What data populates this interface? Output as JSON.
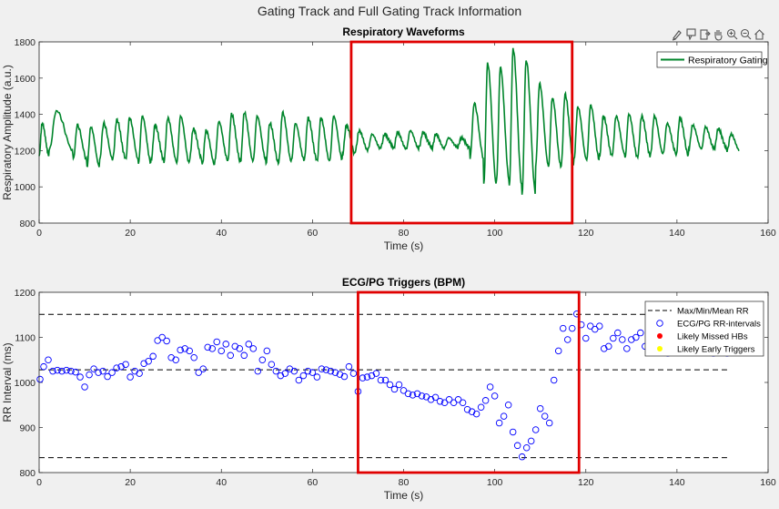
{
  "figure": {
    "title": "Gating Track and Full Gating Track Information"
  },
  "toolbar": {
    "icons": [
      "brush-icon",
      "data-tip-icon",
      "export-icon",
      "pan-icon",
      "zoom-in-icon",
      "zoom-out-icon",
      "home-icon"
    ]
  },
  "chart_data": [
    {
      "type": "line",
      "title": "Respiratory Waveforms",
      "xlabel": "Time (s)",
      "ylabel": "Respiratory Amplitude (a.u.)",
      "xlim": [
        0,
        160
      ],
      "ylim": [
        800,
        1800
      ],
      "xticks": [
        0,
        20,
        40,
        60,
        80,
        100,
        120,
        140,
        160
      ],
      "yticks": [
        800,
        1000,
        1200,
        1400,
        1600,
        1800
      ],
      "grid": false,
      "legend": "top-right",
      "series": [
        {
          "name": "Respiratory Gating",
          "color": "#00852b",
          "breathing_cycles": [
            {
              "t": 0.0,
              "min": 1170,
              "max": 1350
            },
            {
              "t": 2.2,
              "min": 1200,
              "max": 1420
            },
            {
              "t": 7.5,
              "min": 1150,
              "max": 1340
            },
            {
              "t": 10.5,
              "min": 1110,
              "max": 1330
            },
            {
              "t": 13.3,
              "min": 1150,
              "max": 1350
            },
            {
              "t": 16.2,
              "min": 1160,
              "max": 1370
            },
            {
              "t": 19.0,
              "min": 1150,
              "max": 1380
            },
            {
              "t": 21.8,
              "min": 1130,
              "max": 1390
            },
            {
              "t": 24.6,
              "min": 1150,
              "max": 1340
            },
            {
              "t": 27.4,
              "min": 1140,
              "max": 1380
            },
            {
              "t": 30.2,
              "min": 1130,
              "max": 1390
            },
            {
              "t": 33.0,
              "min": 1150,
              "max": 1320
            },
            {
              "t": 35.8,
              "min": 1120,
              "max": 1310
            },
            {
              "t": 38.6,
              "min": 1150,
              "max": 1360
            },
            {
              "t": 41.4,
              "min": 1140,
              "max": 1400
            },
            {
              "t": 44.2,
              "min": 1140,
              "max": 1410
            },
            {
              "t": 47.0,
              "min": 1150,
              "max": 1390
            },
            {
              "t": 49.8,
              "min": 1130,
              "max": 1350
            },
            {
              "t": 52.6,
              "min": 1140,
              "max": 1410
            },
            {
              "t": 55.4,
              "min": 1150,
              "max": 1350
            },
            {
              "t": 58.2,
              "min": 1150,
              "max": 1380
            },
            {
              "t": 61.0,
              "min": 1140,
              "max": 1380
            },
            {
              "t": 63.8,
              "min": 1150,
              "max": 1390
            },
            {
              "t": 66.6,
              "min": 1180,
              "max": 1340
            },
            {
              "t": 69.4,
              "min": 1200,
              "max": 1310
            },
            {
              "t": 72.2,
              "min": 1210,
              "max": 1290
            },
            {
              "t": 75.0,
              "min": 1220,
              "max": 1290
            },
            {
              "t": 77.8,
              "min": 1210,
              "max": 1300
            },
            {
              "t": 80.6,
              "min": 1210,
              "max": 1310
            },
            {
              "t": 83.4,
              "min": 1220,
              "max": 1300
            },
            {
              "t": 86.2,
              "min": 1210,
              "max": 1290
            },
            {
              "t": 89.0,
              "min": 1220,
              "max": 1270
            },
            {
              "t": 91.8,
              "min": 1215,
              "max": 1270
            },
            {
              "t": 94.6,
              "min": 1160,
              "max": 1460
            },
            {
              "t": 97.6,
              "min": 1010,
              "max": 1680
            },
            {
              "t": 100.4,
              "min": 1040,
              "max": 1660
            },
            {
              "t": 103.2,
              "min": 1000,
              "max": 1760
            },
            {
              "t": 106.0,
              "min": 960,
              "max": 1700
            },
            {
              "t": 109.0,
              "min": 1120,
              "max": 1570
            },
            {
              "t": 111.8,
              "min": 1110,
              "max": 1490
            },
            {
              "t": 114.6,
              "min": 1120,
              "max": 1510
            },
            {
              "t": 117.4,
              "min": 1150,
              "max": 1440
            },
            {
              "t": 120.2,
              "min": 1150,
              "max": 1450
            },
            {
              "t": 123.0,
              "min": 1170,
              "max": 1390
            },
            {
              "t": 125.8,
              "min": 1180,
              "max": 1390
            },
            {
              "t": 128.6,
              "min": 1160,
              "max": 1400
            },
            {
              "t": 131.4,
              "min": 1170,
              "max": 1390
            },
            {
              "t": 134.2,
              "min": 1180,
              "max": 1390
            },
            {
              "t": 137.0,
              "min": 1190,
              "max": 1350
            },
            {
              "t": 139.8,
              "min": 1170,
              "max": 1380
            },
            {
              "t": 142.6,
              "min": 1210,
              "max": 1340
            },
            {
              "t": 145.4,
              "min": 1210,
              "max": 1330
            },
            {
              "t": 148.2,
              "min": 1210,
              "max": 1320
            },
            {
              "t": 151.0,
              "min": 1200,
              "max": 1290
            }
          ]
        }
      ],
      "highlight": {
        "color": "#e00000",
        "x": [
          68.5,
          117.0
        ],
        "y": [
          800,
          1800
        ]
      }
    },
    {
      "type": "scatter",
      "title": "ECG/PG Triggers (BPM)",
      "xlabel": "Time (s)",
      "ylabel": "RR Interval (ms)",
      "xlim": [
        0,
        160
      ],
      "ylim": [
        800,
        1200
      ],
      "xticks": [
        0,
        20,
        40,
        60,
        80,
        100,
        120,
        140,
        160
      ],
      "yticks": [
        800,
        900,
        1000,
        1100,
        1200
      ],
      "grid": false,
      "legend": "top-right",
      "legend_entries": [
        {
          "name": "Max/Min/Mean RR",
          "kind": "dashed-line",
          "color": "#000000"
        },
        {
          "name": "ECG/PG RR-intervals",
          "kind": "open-circle",
          "color": "#0000ff"
        },
        {
          "name": "Likely Missed HBs",
          "kind": "filled-dot",
          "color": "#ff0000"
        },
        {
          "name": "Likely Early Triggers",
          "kind": "filled-dot",
          "color": "#ffff00"
        }
      ],
      "reference_lines": [
        {
          "label": "max",
          "y": 1151,
          "x": [
            0,
            151
          ]
        },
        {
          "label": "mean",
          "y": 1028,
          "x": [
            0,
            151
          ]
        },
        {
          "label": "min",
          "y": 833,
          "x": [
            0,
            151
          ]
        }
      ],
      "series": [
        {
          "name": "ECG/PG RR-intervals",
          "color": "#0000ff",
          "points": [
            [
              0.2,
              1007
            ],
            [
              1.0,
              1035
            ],
            [
              2.0,
              1050
            ],
            [
              3.0,
              1025
            ],
            [
              4.0,
              1027
            ],
            [
              5.0,
              1025
            ],
            [
              6.0,
              1027
            ],
            [
              7.0,
              1025
            ],
            [
              8.0,
              1023
            ],
            [
              9.0,
              1012
            ],
            [
              10.0,
              990
            ],
            [
              11.0,
              1017
            ],
            [
              12.0,
              1030
            ],
            [
              13.0,
              1022
            ],
            [
              14.0,
              1025
            ],
            [
              15.0,
              1013
            ],
            [
              16.0,
              1022
            ],
            [
              17.0,
              1032
            ],
            [
              18.0,
              1035
            ],
            [
              19.0,
              1040
            ],
            [
              20.0,
              1012
            ],
            [
              21.0,
              1025
            ],
            [
              22.0,
              1020
            ],
            [
              23.0,
              1042
            ],
            [
              24.0,
              1047
            ],
            [
              25.0,
              1058
            ],
            [
              26.0,
              1093
            ],
            [
              27.0,
              1100
            ],
            [
              28.0,
              1092
            ],
            [
              29.0,
              1055
            ],
            [
              30.0,
              1050
            ],
            [
              31.0,
              1072
            ],
            [
              32.0,
              1075
            ],
            [
              33.0,
              1070
            ],
            [
              34.0,
              1055
            ],
            [
              35.0,
              1022
            ],
            [
              36.0,
              1030
            ],
            [
              37.0,
              1078
            ],
            [
              38.0,
              1075
            ],
            [
              39.0,
              1090
            ],
            [
              40.0,
              1070
            ],
            [
              41.0,
              1085
            ],
            [
              42.0,
              1060
            ],
            [
              43.0,
              1080
            ],
            [
              44.0,
              1075
            ],
            [
              45.0,
              1060
            ],
            [
              46.0,
              1085
            ],
            [
              47.0,
              1075
            ],
            [
              48.0,
              1025
            ],
            [
              49.0,
              1050
            ],
            [
              50.0,
              1070
            ],
            [
              51.0,
              1040
            ],
            [
              52.0,
              1025
            ],
            [
              53.0,
              1015
            ],
            [
              54.0,
              1020
            ],
            [
              55.0,
              1030
            ],
            [
              56.0,
              1025
            ],
            [
              57.0,
              1005
            ],
            [
              58.0,
              1015
            ],
            [
              59.0,
              1025
            ],
            [
              60.0,
              1022
            ],
            [
              61.0,
              1012
            ],
            [
              62.0,
              1030
            ],
            [
              63.0,
              1028
            ],
            [
              64.0,
              1025
            ],
            [
              65.0,
              1022
            ],
            [
              66.0,
              1018
            ],
            [
              67.0,
              1013
            ],
            [
              68.0,
              1035
            ],
            [
              69.0,
              1020
            ],
            [
              70.0,
              980
            ],
            [
              71.0,
              1010
            ],
            [
              72.0,
              1012
            ],
            [
              73.0,
              1015
            ],
            [
              74.0,
              1020
            ],
            [
              75.0,
              1005
            ],
            [
              76.0,
              1005
            ],
            [
              77.0,
              995
            ],
            [
              78.0,
              985
            ],
            [
              79.0,
              995
            ],
            [
              80.0,
              982
            ],
            [
              81.0,
              975
            ],
            [
              82.0,
              972
            ],
            [
              83.0,
              975
            ],
            [
              84.0,
              970
            ],
            [
              85.0,
              968
            ],
            [
              86.0,
              962
            ],
            [
              87.0,
              967
            ],
            [
              88.0,
              958
            ],
            [
              89.0,
              955
            ],
            [
              90.0,
              962
            ],
            [
              91.0,
              955
            ],
            [
              92.0,
              962
            ],
            [
              93.0,
              955
            ],
            [
              94.0,
              940
            ],
            [
              95.0,
              935
            ],
            [
              96.0,
              930
            ],
            [
              97.0,
              945
            ],
            [
              98.0,
              960
            ],
            [
              99.0,
              990
            ],
            [
              100.0,
              970
            ],
            [
              101.0,
              910
            ],
            [
              102.0,
              925
            ],
            [
              103.0,
              950
            ],
            [
              104.0,
              890
            ],
            [
              105.0,
              860
            ],
            [
              106.0,
              835
            ],
            [
              107.0,
              855
            ],
            [
              108.0,
              870
            ],
            [
              109.0,
              895
            ],
            [
              110.0,
              942
            ],
            [
              111.0,
              925
            ],
            [
              112.0,
              910
            ],
            [
              113.0,
              1005
            ],
            [
              114.0,
              1070
            ],
            [
              115.0,
              1120
            ],
            [
              116.0,
              1095
            ],
            [
              117.0,
              1120
            ],
            [
              118.0,
              1152
            ],
            [
              119.0,
              1128
            ],
            [
              120.0,
              1098
            ],
            [
              121.0,
              1125
            ],
            [
              122.0,
              1118
            ],
            [
              123.0,
              1125
            ],
            [
              124.0,
              1075
            ],
            [
              125.0,
              1080
            ],
            [
              126.0,
              1098
            ],
            [
              127.0,
              1110
            ],
            [
              128.0,
              1095
            ],
            [
              129.0,
              1075
            ],
            [
              130.0,
              1095
            ],
            [
              131.0,
              1100
            ],
            [
              132.0,
              1110
            ],
            [
              133.0,
              1080
            ],
            [
              134.0,
              1100
            ],
            [
              135.0,
              1105
            ],
            [
              136.0,
              1110
            ],
            [
              137.0,
              1075
            ],
            [
              138.0,
              1065
            ],
            [
              139.0,
              1080
            ],
            [
              140.0,
              1090
            ],
            [
              141.0,
              1085
            ],
            [
              142.0,
              1080
            ],
            [
              143.0,
              1090
            ],
            [
              144.0,
              1095
            ],
            [
              145.0,
              1080
            ],
            [
              146.0,
              1075
            ],
            [
              147.0,
              1070
            ],
            [
              148.0,
              1065
            ],
            [
              149.0,
              1080
            ],
            [
              150.0,
              1070
            ],
            [
              151.0,
              1065
            ]
          ]
        }
      ],
      "highlight": {
        "color": "#e00000",
        "x": [
          70.0,
          118.5
        ],
        "y": [
          800,
          1200
        ]
      }
    }
  ]
}
